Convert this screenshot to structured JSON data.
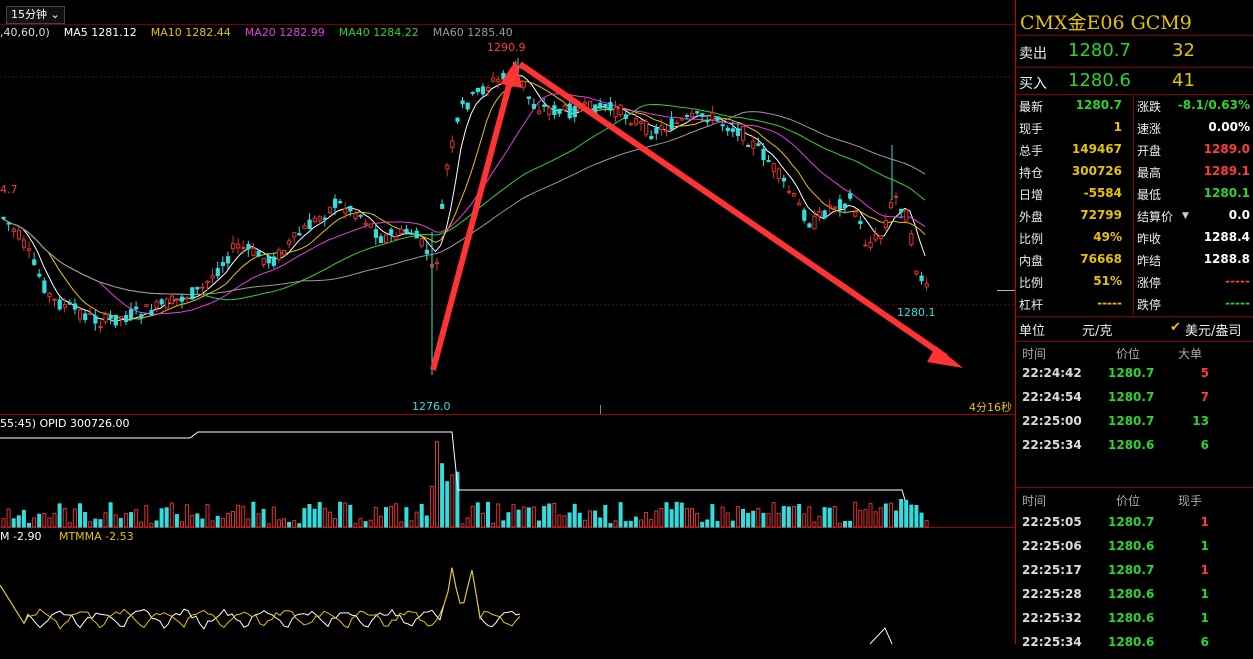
{
  "chart": {
    "period": "15分钟",
    "ma_bar": [
      {
        "text": ",40,60,0)",
        "color": "#dddddd"
      },
      {
        "text": "MA5 1281.12",
        "color": "#ffffff"
      },
      {
        "text": "MA10 1282.44",
        "color": "#e6c300"
      },
      {
        "text": "MA20 1282.99",
        "color": "#e040e0"
      },
      {
        "text": "MA40 1284.22",
        "color": "#30d030"
      },
      {
        "text": "MA60 1285.40",
        "color": "#999999"
      }
    ],
    "high_label": "1290.9",
    "low_label": "1276.0",
    "last_label": "1280.1",
    "left_label": "4.7",
    "countdown": "4分16秒",
    "opi_bar": "55:45)    OPID 300726.00",
    "mtm_bar": {
      "a": "M -2.90",
      "b": "MTMMA -2.53"
    },
    "colors": {
      "up": "#e03030",
      "down": "#33dddd",
      "grid": "#7a0000",
      "arrow": "#ff3333"
    }
  },
  "side": {
    "title": "CMX金E06  GCM9",
    "sell": {
      "label": "卖出",
      "price": "1280.7",
      "qty": "32"
    },
    "buy": {
      "label": "买入",
      "price": "1280.6",
      "qty": "41"
    },
    "quote": [
      {
        "k": "最新",
        "v": "1280.7",
        "vc": "#2bd62b",
        "k2": "涨跌",
        "v2": "-8.1/0.63%",
        "v2c": "#2bd62b"
      },
      {
        "k": "现手",
        "v": "1",
        "vc": "#e6c300",
        "k2": "速涨",
        "v2": "0.00%",
        "v2c": "#ffffff"
      },
      {
        "k": "总手",
        "v": "149467",
        "vc": "#e6c300",
        "k2": "开盘",
        "v2": "1289.0",
        "v2c": "#ff3b3b"
      },
      {
        "k": "持仓",
        "v": "300726",
        "vc": "#e6c300",
        "k2": "最高",
        "v2": "1289.1",
        "v2c": "#ff3b3b"
      },
      {
        "k": "日增",
        "v": "-5584",
        "vc": "#e6c300",
        "k2": "最低",
        "v2": "1280.1",
        "v2c": "#2bd62b"
      },
      {
        "k": "外盘",
        "v": "72799",
        "vc": "#e6c300",
        "k2": "结算价",
        "v2": "0.0",
        "v2c": "#ffffff"
      },
      {
        "k": "比例",
        "v": "49%",
        "vc": "#e6c300",
        "k2": "昨收",
        "v2": "1288.4",
        "v2c": "#ffffff"
      },
      {
        "k": "内盘",
        "v": "76668",
        "vc": "#e6c300",
        "k2": "昨结",
        "v2": "1288.8",
        "v2c": "#ffffff"
      },
      {
        "k": "比例",
        "v": "51%",
        "vc": "#e6c300",
        "k2": "涨停",
        "v2": "-----",
        "v2c": "#ff3b3b"
      },
      {
        "k": "杠杆",
        "v": "-----",
        "vc": "#e6c300",
        "k2": "跌停",
        "v2": "-----",
        "v2c": "#2bd62b"
      }
    ],
    "unit": {
      "label": "单位",
      "cny": "元/克",
      "usd": "美元/盎司"
    },
    "big_header": {
      "time": "时间",
      "price": "价位",
      "vol": "大单"
    },
    "big_orders": [
      {
        "time": "22:24:42",
        "price": "1280.7",
        "vol": "5",
        "vc": "#ff3b3b"
      },
      {
        "time": "22:24:54",
        "price": "1280.7",
        "vol": "7",
        "vc": "#ff3b3b"
      },
      {
        "time": "22:25:00",
        "price": "1280.7",
        "vol": "13",
        "vc": "#2bd62b"
      },
      {
        "time": "22:25:34",
        "price": "1280.6",
        "vol": "6",
        "vc": "#2bd62b"
      }
    ],
    "tick_header": {
      "time": "时间",
      "price": "价位",
      "vol": "现手"
    },
    "ticks": [
      {
        "time": "22:25:05",
        "price": "1280.7",
        "vol": "1",
        "vc": "#ff3b3b"
      },
      {
        "time": "22:25:06",
        "price": "1280.6",
        "vol": "1",
        "vc": "#2bd62b"
      },
      {
        "time": "22:25:17",
        "price": "1280.7",
        "vol": "1",
        "vc": "#ff3b3b"
      },
      {
        "time": "22:25:28",
        "price": "1280.6",
        "vol": "1",
        "vc": "#2bd62b"
      },
      {
        "time": "22:25:32",
        "price": "1280.6",
        "vol": "1",
        "vc": "#2bd62b"
      },
      {
        "time": "22:25:34",
        "price": "1280.6",
        "vol": "6",
        "vc": "#2bd62b"
      }
    ]
  }
}
